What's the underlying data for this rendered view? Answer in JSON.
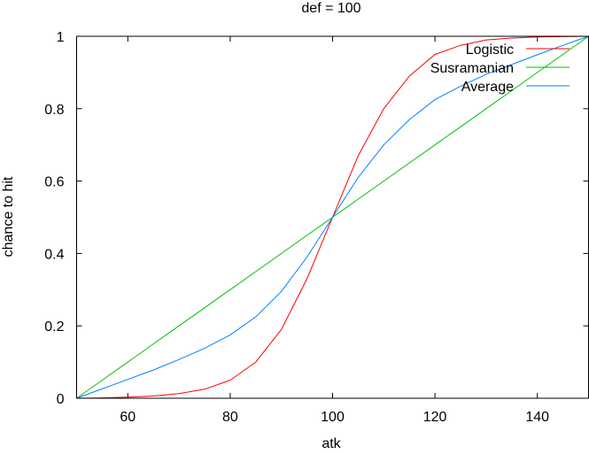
{
  "chart_data": {
    "type": "line",
    "title": "def = 100",
    "xlabel": "atk",
    "ylabel": "chance to hit",
    "xlim": [
      50,
      150
    ],
    "ylim": [
      0,
      1
    ],
    "xticks": [
      60,
      80,
      100,
      120,
      140
    ],
    "yticks": [
      0,
      0.2,
      0.4,
      0.6,
      0.8,
      1
    ],
    "ytick_labels": [
      "0",
      "0.2",
      "0.4",
      "0.6",
      "0.8",
      "1"
    ],
    "legend_position": "top-right",
    "x": [
      50,
      55,
      60,
      65,
      70,
      75,
      80,
      85,
      90,
      95,
      100,
      105,
      110,
      115,
      120,
      125,
      130,
      135,
      140,
      145,
      150
    ],
    "series": [
      {
        "name": "Logistic",
        "color": "#ff0000",
        "values": [
          0,
          0.001,
          0.003,
          0.006,
          0.013,
          0.025,
          0.05,
          0.1,
          0.19,
          0.33,
          0.5,
          0.67,
          0.8,
          0.89,
          0.95,
          0.975,
          0.99,
          0.995,
          0.998,
          0.999,
          1
        ]
      },
      {
        "name": "Susramanian",
        "color": "#00c000",
        "values": [
          0,
          0.05,
          0.1,
          0.15,
          0.2,
          0.25,
          0.3,
          0.35,
          0.4,
          0.45,
          0.5,
          0.55,
          0.6,
          0.65,
          0.7,
          0.75,
          0.8,
          0.85,
          0.9,
          0.95,
          1
        ]
      },
      {
        "name": "Average",
        "color": "#0080ff",
        "values": [
          0,
          0.026,
          0.052,
          0.078,
          0.107,
          0.138,
          0.175,
          0.225,
          0.295,
          0.39,
          0.5,
          0.61,
          0.7,
          0.77,
          0.825,
          0.862,
          0.895,
          0.922,
          0.949,
          0.975,
          1
        ]
      }
    ]
  }
}
